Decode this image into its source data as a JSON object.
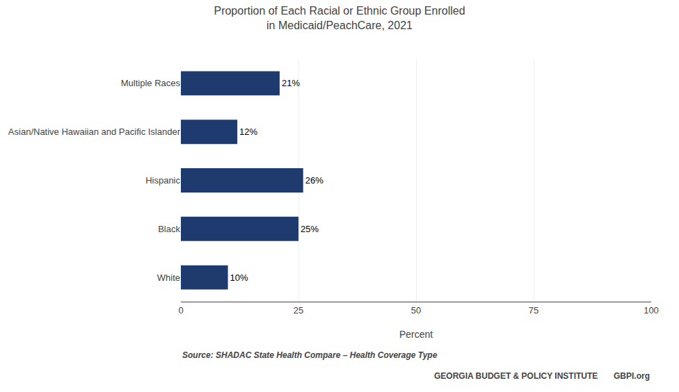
{
  "chart_data": {
    "type": "bar",
    "orientation": "horizontal",
    "title": "Proportion of Each Racial or Ethnic Group Enrolled\nin Medicaid/PeachCare, 2021",
    "categories": [
      "Multiple Races",
      "Asian/Native Hawaiian and Pacific Islander",
      "Hispanic",
      "Black",
      "White"
    ],
    "values": [
      21,
      12,
      26,
      25,
      10
    ],
    "value_labels": [
      "21%",
      "12%",
      "26%",
      "25%",
      "10%"
    ],
    "data_labels": true,
    "color": "#1F3A6E",
    "xlabel": "Percent",
    "xlim": [
      0,
      100
    ],
    "xticks": [
      0,
      25,
      50,
      75,
      100
    ],
    "grid": true,
    "annotations": [
      "Source: SHADAC State Health Compare – Health Coverage Type",
      "GEORGIA BUDGET & POLICY INSTITUTE",
      "GBPI.org"
    ]
  }
}
